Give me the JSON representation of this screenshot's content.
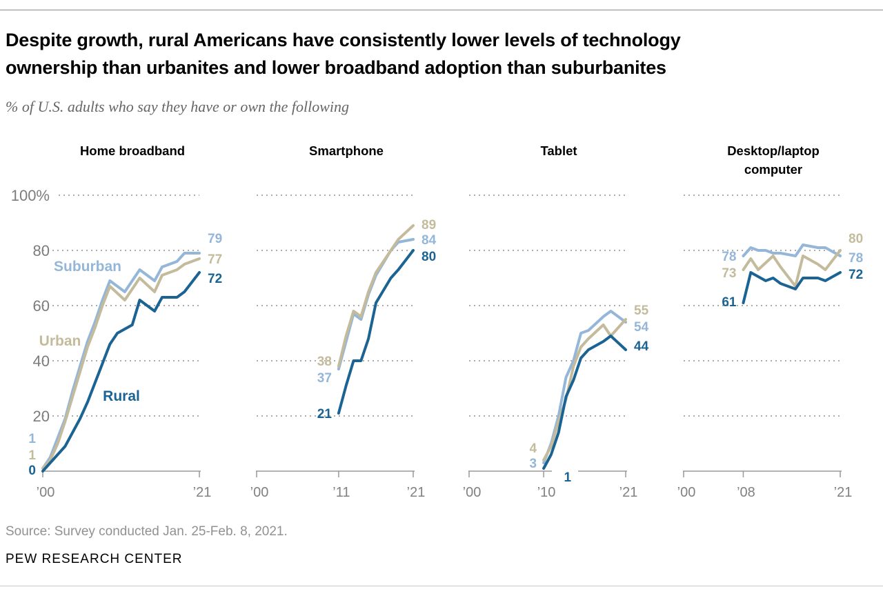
{
  "header": {
    "title_lines": [
      "Despite growth, rural Americans have consistently lower levels of technology",
      "ownership than urbanites and lower broadband adoption than suburbanites"
    ],
    "subtitle": "% of U.S. adults who say they have or own the following"
  },
  "footer": {
    "source": "Source: Survey conducted Jan. 25-Feb. 8, 2021.",
    "brand": "PEW RESEARCH CENTER"
  },
  "colors": {
    "suburban": "#94b6d9",
    "urban": "#c3bb9b",
    "rural": "#1a6393",
    "grid": "#ababab",
    "axis": "#999999",
    "tick_label": "#818181"
  },
  "chart_data": [
    {
      "type": "line",
      "title_lines": [
        "Home broadband"
      ],
      "x_range": [
        2000,
        2021
      ],
      "ylim": [
        0,
        100
      ],
      "grid_values": [
        20,
        40,
        60,
        80,
        100
      ],
      "grid_start_overrides": {
        "100": 85
      },
      "y_tick_labels": [
        {
          "v": 100,
          "label": "100%"
        },
        {
          "v": 80,
          "label": "80"
        },
        {
          "v": 60,
          "label": "60"
        },
        {
          "v": 40,
          "label": "40"
        },
        {
          "v": 20,
          "label": "20"
        }
      ],
      "x_ticks": [
        {
          "year": 2000,
          "label": "’00"
        },
        {
          "year": 2021,
          "label": "’21"
        }
      ],
      "series": [
        {
          "name": "Suburban",
          "key": "suburban",
          "points": [
            [
              2000,
              1
            ],
            [
              2001,
              5
            ],
            [
              2002,
              12
            ],
            [
              2003,
              19
            ],
            [
              2004,
              29
            ],
            [
              2005,
              38
            ],
            [
              2006,
              47
            ],
            [
              2007,
              54
            ],
            [
              2008,
              62
            ],
            [
              2009,
              69
            ],
            [
              2011,
              65
            ],
            [
              2013,
              73
            ],
            [
              2015,
              69
            ],
            [
              2016,
              74
            ],
            [
              2018,
              76
            ],
            [
              2019,
              79
            ],
            [
              2021,
              79
            ]
          ],
          "start_label": {
            "text": "1",
            "v": 12
          },
          "end_label": {
            "text": "79",
            "v": 84.5
          }
        },
        {
          "name": "Urban",
          "key": "urban",
          "points": [
            [
              2000,
              1
            ],
            [
              2001,
              4
            ],
            [
              2002,
              10
            ],
            [
              2003,
              18
            ],
            [
              2004,
              27
            ],
            [
              2005,
              36
            ],
            [
              2006,
              45
            ],
            [
              2007,
              52
            ],
            [
              2008,
              60
            ],
            [
              2009,
              67
            ],
            [
              2011,
              62
            ],
            [
              2013,
              70
            ],
            [
              2015,
              65
            ],
            [
              2016,
              71
            ],
            [
              2018,
              73
            ],
            [
              2019,
              75
            ],
            [
              2021,
              77
            ]
          ],
          "start_label": {
            "text": "1",
            "v": 6
          },
          "end_label": {
            "text": "77",
            "v": 77
          }
        },
        {
          "name": "Rural",
          "key": "rural",
          "points": [
            [
              2000,
              0
            ],
            [
              2001,
              3
            ],
            [
              2002,
              6
            ],
            [
              2003,
              9
            ],
            [
              2004,
              14
            ],
            [
              2005,
              19
            ],
            [
              2006,
              25
            ],
            [
              2007,
              32
            ],
            [
              2008,
              39
            ],
            [
              2009,
              46
            ],
            [
              2010,
              50
            ],
            [
              2012,
              53
            ],
            [
              2013,
              62
            ],
            [
              2015,
              58
            ],
            [
              2016,
              63
            ],
            [
              2018,
              63
            ],
            [
              2019,
              65
            ],
            [
              2021,
              72
            ]
          ],
          "start_label": {
            "text": "0",
            "v": 0.5
          },
          "end_label": {
            "text": "72",
            "v": 70
          }
        }
      ],
      "series_labels": [
        {
          "text": "Suburban",
          "key": "suburban",
          "cx": 127,
          "v": 74.5
        },
        {
          "text": "Urban",
          "key": "urban",
          "cx": 87,
          "v": 47.5
        },
        {
          "text": "Rural",
          "key": "rural",
          "cx": 176,
          "v": 27.5
        }
      ]
    },
    {
      "type": "line",
      "title_lines": [
        "Smartphone"
      ],
      "x_range": [
        2000,
        2021
      ],
      "ylim": [
        0,
        100
      ],
      "grid_values": [
        20,
        40,
        60,
        80,
        100
      ],
      "x_ticks": [
        {
          "year": 2000,
          "label": "’00"
        },
        {
          "year": 2011,
          "label": "’11"
        },
        {
          "year": 2021,
          "label": "’21"
        }
      ],
      "series": [
        {
          "name": "Suburban",
          "key": "suburban",
          "points": [
            [
              2011,
              37
            ],
            [
              2012,
              47
            ],
            [
              2013,
              57
            ],
            [
              2014,
              55
            ],
            [
              2015,
              64
            ],
            [
              2016,
              71
            ],
            [
              2018,
              80
            ],
            [
              2019,
              83
            ],
            [
              2021,
              84
            ]
          ],
          "start_label": {
            "text": "37",
            "v": 34
          },
          "end_label": {
            "text": "84",
            "v": 84
          }
        },
        {
          "name": "Urban",
          "key": "urban",
          "points": [
            [
              2011,
              38
            ],
            [
              2012,
              49
            ],
            [
              2013,
              58
            ],
            [
              2014,
              56
            ],
            [
              2015,
              65
            ],
            [
              2016,
              72
            ],
            [
              2018,
              80
            ],
            [
              2019,
              84
            ],
            [
              2021,
              89
            ]
          ],
          "start_label": {
            "text": "38",
            "v": 40
          },
          "end_label": {
            "text": "89",
            "v": 89.5
          }
        },
        {
          "name": "Rural",
          "key": "rural",
          "points": [
            [
              2011,
              21
            ],
            [
              2012,
              31
            ],
            [
              2013,
              40
            ],
            [
              2014,
              40
            ],
            [
              2015,
              48
            ],
            [
              2016,
              61
            ],
            [
              2018,
              70
            ],
            [
              2019,
              73
            ],
            [
              2021,
              80
            ]
          ],
          "start_label": {
            "text": "21",
            "v": 21
          },
          "end_label": {
            "text": "80",
            "v": 78
          }
        }
      ]
    },
    {
      "type": "line",
      "title_lines": [
        "Tablet"
      ],
      "x_range": [
        2000,
        2021
      ],
      "ylim": [
        0,
        100
      ],
      "grid_values": [
        20,
        40,
        60,
        80,
        100
      ],
      "axis_segments": [
        [
          679,
          800
        ],
        [
          838,
          909
        ]
      ],
      "x_ticks": [
        {
          "year": 2000,
          "label": "’00"
        },
        {
          "year": 2010,
          "label": "’10"
        },
        {
          "year": 2021,
          "label": "’21"
        }
      ],
      "series": [
        {
          "name": "Suburban",
          "key": "suburban",
          "points": [
            [
              2010,
              3
            ],
            [
              2011,
              10
            ],
            [
              2012,
              20
            ],
            [
              2013,
              34
            ],
            [
              2014,
              40
            ],
            [
              2015,
              50
            ],
            [
              2016,
              51
            ],
            [
              2018,
              56
            ],
            [
              2019,
              58
            ],
            [
              2021,
              54
            ]
          ],
          "start_label": {
            "text": "3",
            "v": 3
          },
          "end_label": {
            "text": "54",
            "v": 52.5
          }
        },
        {
          "name": "Urban",
          "key": "urban",
          "points": [
            [
              2010,
              4
            ],
            [
              2011,
              9
            ],
            [
              2012,
              18
            ],
            [
              2013,
              26
            ],
            [
              2014,
              38
            ],
            [
              2015,
              45
            ],
            [
              2016,
              48
            ],
            [
              2018,
              53
            ],
            [
              2019,
              49
            ],
            [
              2021,
              55
            ]
          ],
          "start_label": {
            "text": "4",
            "v": 8.5
          },
          "end_label": {
            "text": "55",
            "v": 58.5
          }
        },
        {
          "name": "Rural",
          "key": "rural",
          "points": [
            [
              2010,
              1
            ],
            [
              2011,
              6
            ],
            [
              2012,
              14
            ],
            [
              2013,
              27
            ],
            [
              2014,
              33
            ],
            [
              2015,
              41
            ],
            [
              2016,
              44
            ],
            [
              2018,
              47
            ],
            [
              2019,
              49
            ],
            [
              2021,
              44
            ]
          ],
          "start_label": {
            "text": "1",
            "v": -2,
            "dx": 50
          },
          "end_label": {
            "text": "44",
            "v": 45.5
          }
        }
      ]
    },
    {
      "type": "line",
      "title_lines": [
        "Desktop/laptop",
        "computer"
      ],
      "x_range": [
        2000,
        2021
      ],
      "ylim": [
        0,
        100
      ],
      "grid_values": [
        20,
        40,
        60,
        80,
        100
      ],
      "x_ticks": [
        {
          "year": 2000,
          "label": "’00"
        },
        {
          "year": 2008,
          "label": "’08"
        },
        {
          "year": 2021,
          "label": "’21"
        }
      ],
      "series": [
        {
          "name": "Suburban",
          "key": "suburban",
          "points": [
            [
              2008,
              78
            ],
            [
              2009,
              81
            ],
            [
              2010,
              80
            ],
            [
              2011,
              80
            ],
            [
              2012,
              79
            ],
            [
              2013,
              79
            ],
            [
              2015,
              78
            ],
            [
              2016,
              82
            ],
            [
              2018,
              81
            ],
            [
              2019,
              81
            ],
            [
              2021,
              78
            ]
          ],
          "start_label": {
            "text": "78",
            "v": 78
          },
          "end_label": {
            "text": "78",
            "v": 77.5
          }
        },
        {
          "name": "Urban",
          "key": "urban",
          "points": [
            [
              2008,
              73
            ],
            [
              2009,
              77
            ],
            [
              2010,
              73
            ],
            [
              2012,
              78
            ],
            [
              2013,
              74
            ],
            [
              2015,
              67
            ],
            [
              2016,
              78
            ],
            [
              2018,
              75
            ],
            [
              2019,
              73
            ],
            [
              2021,
              80
            ]
          ],
          "start_label": {
            "text": "73",
            "v": 72
          },
          "end_label": {
            "text": "80",
            "v": 84.5
          }
        },
        {
          "name": "Rural",
          "key": "rural",
          "points": [
            [
              2008,
              61
            ],
            [
              2009,
              72
            ],
            [
              2011,
              69
            ],
            [
              2012,
              70
            ],
            [
              2013,
              68
            ],
            [
              2015,
              66
            ],
            [
              2016,
              70
            ],
            [
              2018,
              70
            ],
            [
              2019,
              69
            ],
            [
              2021,
              72
            ]
          ],
          "start_label": {
            "text": "61",
            "v": 61.5
          },
          "end_label": {
            "text": "72",
            "v": 71.5
          }
        }
      ]
    }
  ]
}
